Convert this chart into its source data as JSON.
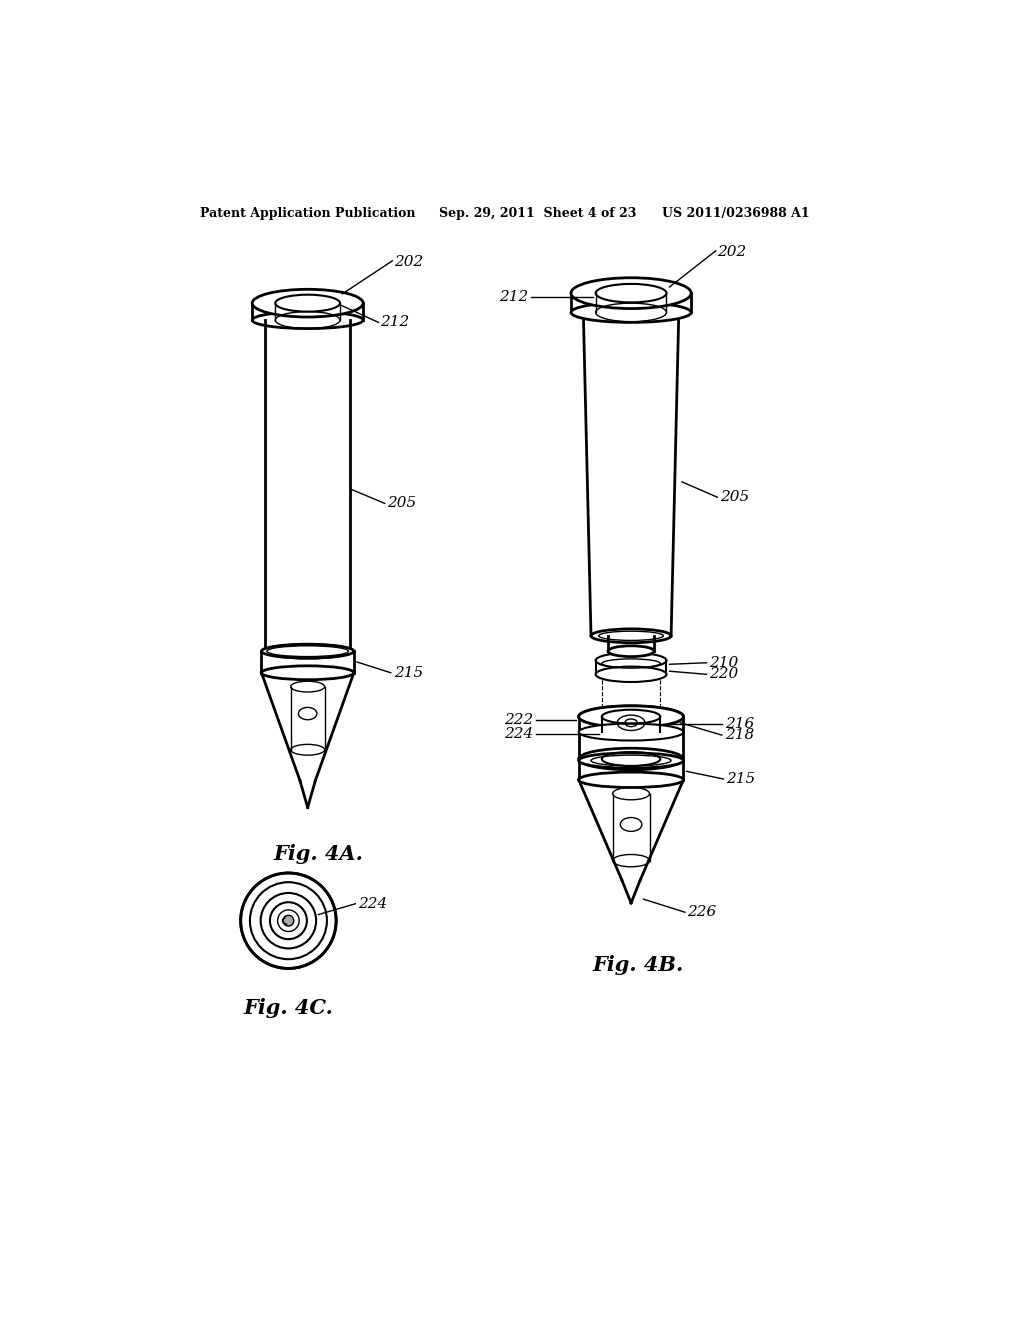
{
  "bg_color": "#ffffff",
  "line_color": "#000000",
  "header_left": "Patent Application Publication",
  "header_mid": "Sep. 29, 2011  Sheet 4 of 23",
  "header_right": "US 2011/0236988 A1",
  "fig4a_label": "Fig. 4A.",
  "fig4b_label": "Fig. 4B.",
  "fig4c_label": "Fig. 4C."
}
